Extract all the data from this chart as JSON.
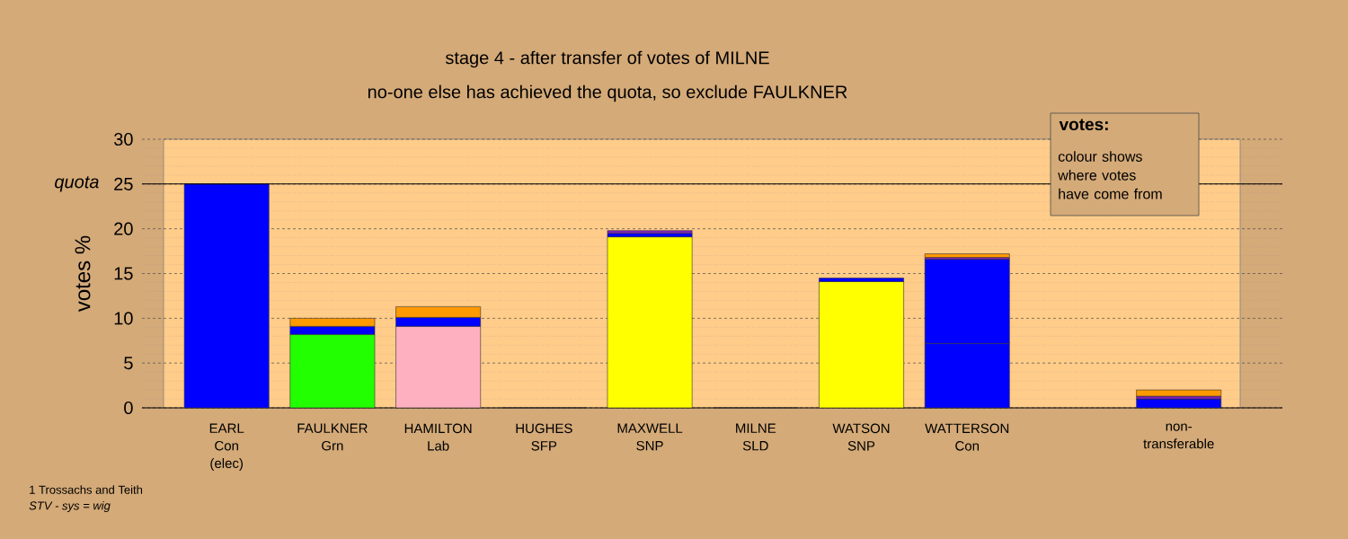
{
  "chart_data": {
    "type": "bar",
    "title": "stage 4 - after transfer of votes of MILNE",
    "subtitle": "no-one else has achieved the quota, so exclude FAULKNER",
    "ylabel": "votes %",
    "categories": [
      "EARL\nCon\n(elec)",
      "FAULKNER\nGrn",
      "HAMILTON\nLab",
      "HUGHES\nSFP",
      "MAXWELL\nSNP",
      "MILNE\nSLD",
      "WATSON\nSNP",
      "WATTERSON\nCon",
      null,
      "non-\ntransferable"
    ],
    "stacked": true,
    "series": [
      {
        "colors": [
          "#0000ff",
          "#22ff00",
          "#ffb0c0",
          "#333333",
          "#ffff00",
          "#333333",
          "#ffff00",
          "#0000ff",
          null,
          null
        ],
        "values": [
          25,
          8.2,
          9.1,
          0,
          19.1,
          0,
          14.1,
          7.2,
          null,
          null
        ]
      },
      {
        "color": "#0000ff",
        "values": [
          null,
          0.9,
          1.0,
          null,
          0.4,
          null,
          0.4,
          9.4,
          null,
          1.0
        ]
      },
      {
        "color": "#8020c0",
        "values": [
          null,
          null,
          null,
          null,
          0.3,
          null,
          null,
          0.2,
          null,
          0.3
        ]
      },
      {
        "color": "#ff9900",
        "values": [
          null,
          0.9,
          1.2,
          null,
          null,
          null,
          null,
          0.4,
          null,
          0.7
        ]
      }
    ],
    "ylim": [
      0,
      30
    ],
    "yticks": [
      0,
      5,
      10,
      15,
      20,
      25,
      30
    ],
    "grid": "y",
    "ref_lines": [
      {
        "axis": "y",
        "value": 25,
        "label": "quota",
        "color": "#000000",
        "line_style": "solid"
      }
    ],
    "annotations": [
      "votes:",
      "colour shows\nwhere votes\nhave come from",
      "1 Trossachs and Teith",
      "STV - sys = wig"
    ]
  }
}
